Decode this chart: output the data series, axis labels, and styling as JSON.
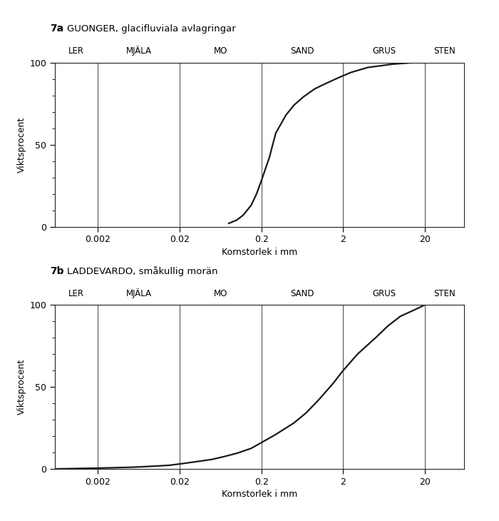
{
  "fig7a_label": "7a",
  "fig7a_subtitle": "GUONGER, glacifluviala avlagringar",
  "fig7b_label": "7b",
  "fig7b_subtitle": "LADDEVARDO, småkullig morän",
  "xlabel": "Kornstorlek i mm",
  "ylabel": "Viktsprocent",
  "category_labels": [
    "LER",
    "MJÄLA",
    "MO",
    "SAND",
    "GRUS",
    "STEN"
  ],
  "category_boundaries": [
    0.0006,
    0.002,
    0.02,
    0.2,
    2.0,
    20.0,
    60.0
  ],
  "xmin": 0.0006,
  "xmax": 60.0,
  "xticks": [
    0.002,
    0.02,
    0.2,
    2,
    20
  ],
  "xtick_labels": [
    "0.002",
    "0.02",
    "0.2",
    "2",
    "20"
  ],
  "yticks": [
    0,
    50,
    100
  ],
  "ylim": [
    0,
    100
  ],
  "curve_a_x": [
    0.08,
    0.1,
    0.12,
    0.15,
    0.175,
    0.2,
    0.25,
    0.3,
    0.4,
    0.5,
    0.65,
    0.9,
    1.2,
    1.8,
    2.5,
    4.0,
    8.0,
    15.0,
    20.0
  ],
  "curve_a_y": [
    2,
    4,
    7,
    13,
    20,
    28,
    42,
    57,
    68,
    74,
    79,
    84,
    87,
    91,
    94,
    97,
    99,
    100,
    100
  ],
  "curve_b_x": [
    0.0006,
    0.001,
    0.002,
    0.003,
    0.005,
    0.007,
    0.01,
    0.015,
    0.02,
    0.03,
    0.05,
    0.07,
    0.1,
    0.15,
    0.2,
    0.3,
    0.5,
    0.7,
    1.0,
    1.5,
    2.0,
    3.0,
    5.0,
    7.0,
    10.0,
    15.0,
    20.0
  ],
  "curve_b_y": [
    0,
    0.2,
    0.5,
    0.7,
    1.0,
    1.3,
    1.7,
    2.2,
    3.0,
    4.2,
    5.8,
    7.5,
    9.5,
    12.5,
    16,
    21,
    28,
    34,
    42,
    52,
    60,
    70,
    80,
    87,
    93,
    97,
    100
  ],
  "line_color": "#1a1a1a",
  "line_width": 1.6,
  "divider_color": "#444444",
  "divider_lw": 0.7,
  "background_color": "#ffffff",
  "text_color": "#000000",
  "spine_color": "#222222",
  "spine_lw": 0.8
}
